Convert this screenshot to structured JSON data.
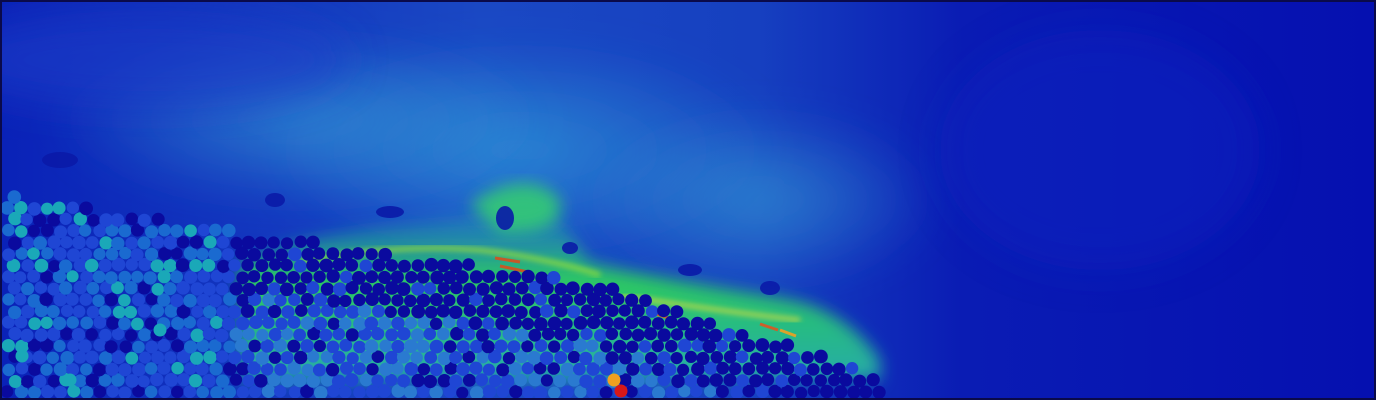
{
  "image": {
    "description_type": "cfd-dem-simulation-render",
    "colormap": "jet",
    "colors": {
      "background_field": "#0210b8",
      "field_mid": "#1a4fd0",
      "field_cyan": "#12b8c8",
      "field_green": "#2ed15a",
      "field_yellow": "#e8e43a",
      "field_red": "#d81c12",
      "particle_dark": "#0a0a9e",
      "particle_mid": "#1f46d4",
      "particle_teal": "#1aa8b8",
      "particle_orange": "#f0a020",
      "particle_red": "#d81818",
      "border": "#0a0a4a"
    }
  }
}
